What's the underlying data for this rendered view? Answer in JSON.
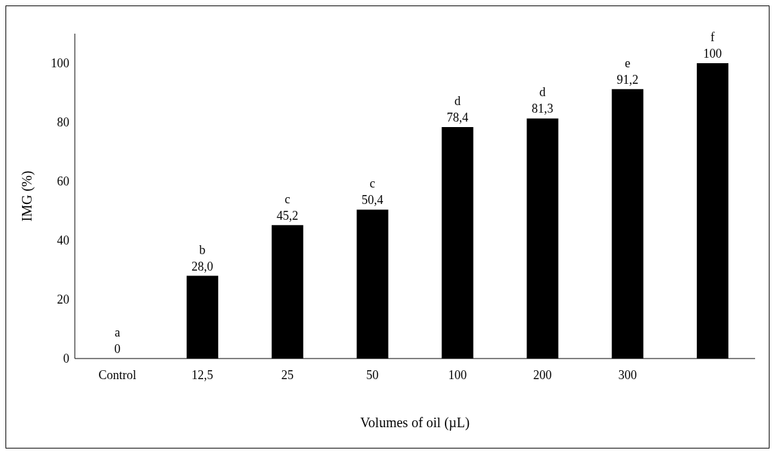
{
  "chart_data": {
    "type": "bar",
    "xlabel": "Volumes of oil (µL)",
    "ylabel": "IMG (%)",
    "categories": [
      "Control",
      "12,5",
      "25",
      "50",
      "100",
      "200",
      "300",
      null
    ],
    "values": [
      0,
      28.0,
      45.2,
      50.4,
      78.4,
      81.3,
      91.2,
      100
    ],
    "value_labels": [
      "0",
      "28,0",
      "45,2",
      "50,4",
      "78,4",
      "81,3",
      "91,2",
      "100"
    ],
    "color": "#000000",
    "ylim": [
      0,
      110
    ],
    "yticks": [
      0,
      20,
      40,
      60,
      80,
      100
    ],
    "grid": false,
    "legend": false,
    "annotations": [
      {
        "text": "a",
        "x": "Control",
        "y": 0
      },
      {
        "text": "b",
        "x": "12,5",
        "y": 28.0
      },
      {
        "text": "c",
        "x": "25",
        "y": 45.2
      },
      {
        "text": "c",
        "x": "50",
        "y": 50.4
      },
      {
        "text": "d",
        "x": "100",
        "y": 78.4
      },
      {
        "text": "d",
        "x": "200",
        "y": 81.3
      },
      {
        "text": "e",
        "x": "300",
        "y": 91.2
      },
      {
        "text": "f",
        "y": 100
      }
    ]
  }
}
